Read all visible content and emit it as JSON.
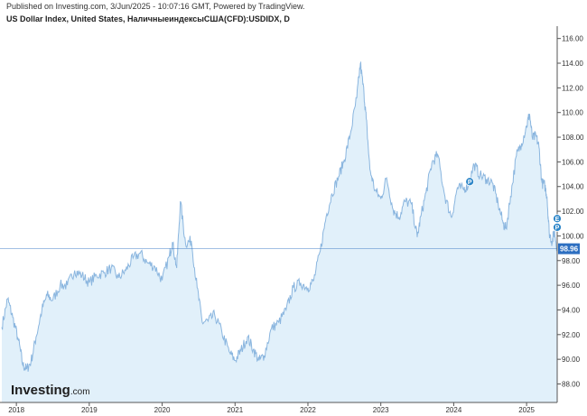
{
  "header": {
    "published": "Published on Investing.com, 3/Jun/2025 - 10:07:16 GMT, Powered by TradingView.",
    "title": "US Dollar Index, United States, НаличныеиндексыСША(CFD):USDIDX, D"
  },
  "watermark": {
    "brand": "Investing",
    "suffix": ".com"
  },
  "markers": [
    {
      "label": "P",
      "date": 2024.22,
      "value": 104.4
    },
    {
      "label": "E",
      "date": 2025.42,
      "value": 101.4
    },
    {
      "label": "P",
      "date": 2025.42,
      "value": 100.7
    }
  ],
  "chart_data": {
    "type": "area",
    "title": "US Dollar Index, United States, НаличныеиндексыСША(CFD):USDIDX, D",
    "xlabel": "",
    "ylabel": "",
    "x_range": [
      2017.8,
      2025.42
    ],
    "ylim": [
      86.5,
      117.0
    ],
    "x_tick_labels": [
      "2018",
      "2019",
      "2020",
      "2021",
      "2022",
      "2023",
      "2024",
      "2025"
    ],
    "y_tick_labels": [
      "116.00",
      "114.00",
      "112.00",
      "110.00",
      "108.00",
      "106.00",
      "104.00",
      "102.00",
      "100.00",
      "98.00",
      "96.00",
      "94.00",
      "92.00",
      "90.00",
      "88.00"
    ],
    "last_value": 98.96,
    "last_value_label": "98.96",
    "line_color": "#8bb6df",
    "fill_color": "#e1f0fa",
    "price_line_color": "#2d6fc1",
    "series": [
      {
        "x": [
          2017.8,
          2017.88,
          2017.95,
          2018.03,
          2018.09,
          2018.14,
          2018.2,
          2018.27,
          2018.35,
          2018.42,
          2018.5,
          2018.6,
          2018.7,
          2018.8,
          2018.9,
          2019.0,
          2019.1,
          2019.2,
          2019.3,
          2019.4,
          2019.5,
          2019.6,
          2019.7,
          2019.8,
          2019.9,
          2020.0,
          2020.1,
          2020.14,
          2020.2,
          2020.25,
          2020.32,
          2020.4,
          2020.48,
          2020.55,
          2020.63,
          2020.72,
          2020.82,
          2020.92,
          2021.0,
          2021.08,
          2021.17,
          2021.25,
          2021.33,
          2021.4,
          2021.5,
          2021.6,
          2021.7,
          2021.8,
          2021.9,
          2022.0,
          2022.08,
          2022.17,
          2022.25,
          2022.33,
          2022.42,
          2022.5,
          2022.58,
          2022.67,
          2022.72,
          2022.77,
          2022.8,
          2022.85,
          2022.92,
          2023.0,
          2023.08,
          2023.17,
          2023.25,
          2023.33,
          2023.42,
          2023.5,
          2023.55,
          2023.62,
          2023.7,
          2023.78,
          2023.88,
          2023.97,
          2024.05,
          2024.13,
          2024.2,
          2024.28,
          2024.36,
          2024.45,
          2024.53,
          2024.61,
          2024.68,
          2024.72,
          2024.78,
          2024.86,
          2024.93,
          2025.0,
          2025.04,
          2025.08,
          2025.13,
          2025.17,
          2025.21,
          2025.25,
          2025.28,
          2025.31,
          2025.35,
          2025.38,
          2025.42
        ],
        "values": [
          92.6,
          94.9,
          93.4,
          91.5,
          89.5,
          89.2,
          89.8,
          91.8,
          94.0,
          95.2,
          94.8,
          96.0,
          96.0,
          97.2,
          96.8,
          96.2,
          96.8,
          97.0,
          97.4,
          96.6,
          97.2,
          98.2,
          98.6,
          97.8,
          97.5,
          96.4,
          98.4,
          99.5,
          97.4,
          102.8,
          99.4,
          99.6,
          95.8,
          93.0,
          93.1,
          93.6,
          92.2,
          90.6,
          89.9,
          90.7,
          91.8,
          90.8,
          89.9,
          90.3,
          92.5,
          93.0,
          94.0,
          95.8,
          96.2,
          95.8,
          96.4,
          98.8,
          101.6,
          103.4,
          104.8,
          106.2,
          108.2,
          111.2,
          114.0,
          111.5,
          109.5,
          105.4,
          103.7,
          103.0,
          104.7,
          102.1,
          101.5,
          102.8,
          102.6,
          99.9,
          101.6,
          103.5,
          105.9,
          106.6,
          103.2,
          101.5,
          103.9,
          103.8,
          104.1,
          105.8,
          104.9,
          104.6,
          104.3,
          102.6,
          101.0,
          100.6,
          103.2,
          106.5,
          107.5,
          108.9,
          109.9,
          107.9,
          108.1,
          107.2,
          104.3,
          104.1,
          103.2,
          100.3,
          99.5,
          100.4,
          98.96
        ]
      }
    ]
  }
}
